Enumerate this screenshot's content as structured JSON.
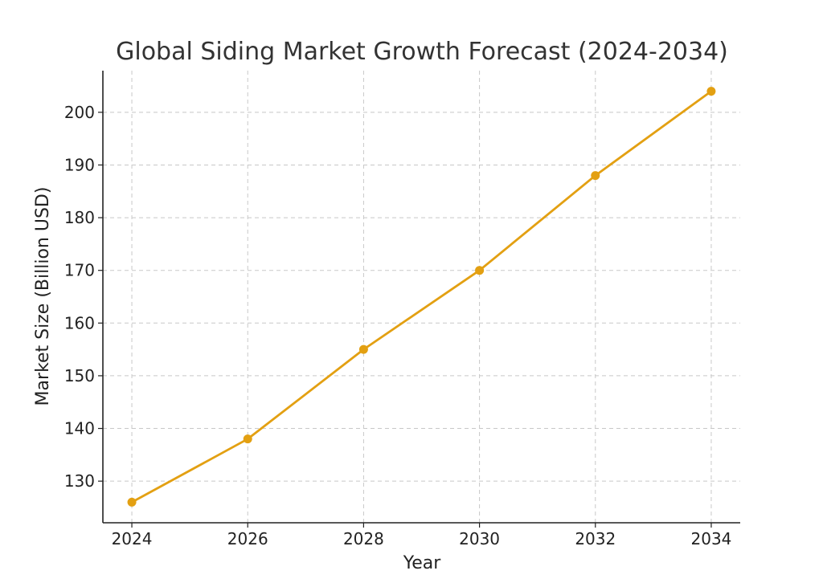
{
  "chart_data": {
    "type": "line",
    "title": "Global Siding Market Growth Forecast (2024-2034)",
    "xlabel": "Year",
    "ylabel": "Market Size (Billion USD)",
    "x": [
      2024,
      2026,
      2028,
      2030,
      2032,
      2034
    ],
    "series": [
      {
        "values": [
          126,
          138,
          155,
          170,
          188,
          204
        ]
      }
    ],
    "xlim": [
      2023.5,
      2034.5
    ],
    "ylim": [
      122.1,
      207.9
    ],
    "x_ticks": [
      2024,
      2026,
      2028,
      2030,
      2032,
      2034
    ],
    "x_tick_labels": [
      "2024",
      "2026",
      "2028",
      "2030",
      "2032",
      "2034"
    ],
    "y_ticks": [
      130,
      140,
      150,
      160,
      170,
      180,
      190,
      200
    ],
    "y_tick_labels": [
      "130",
      "140",
      "150",
      "160",
      "170",
      "180",
      "190",
      "200"
    ],
    "grid": true,
    "line_color": "#e3a012",
    "marker": "circle"
  }
}
